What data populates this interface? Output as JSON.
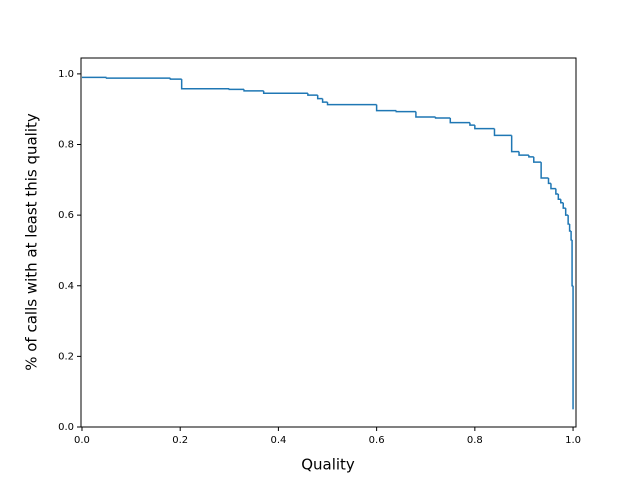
{
  "chart_data": {
    "type": "line",
    "drawstyle": "steps-post",
    "color": "#1f77b4",
    "xlabel": "Quality",
    "ylabel": "% of calls with at least this quality",
    "x": [
      0.0,
      0.05,
      0.18,
      0.203,
      0.3,
      0.33,
      0.37,
      0.46,
      0.48,
      0.49,
      0.5,
      0.6,
      0.64,
      0.68,
      0.72,
      0.75,
      0.79,
      0.8,
      0.84,
      0.875,
      0.89,
      0.91,
      0.92,
      0.935,
      0.95,
      0.955,
      0.965,
      0.97,
      0.975,
      0.98,
      0.985,
      0.99,
      0.993,
      0.996,
      0.998,
      1.0
    ],
    "values": [
      0.99,
      0.988,
      0.985,
      0.958,
      0.956,
      0.952,
      0.945,
      0.94,
      0.93,
      0.92,
      0.913,
      0.896,
      0.893,
      0.878,
      0.875,
      0.862,
      0.855,
      0.845,
      0.826,
      0.78,
      0.77,
      0.765,
      0.75,
      0.705,
      0.69,
      0.675,
      0.66,
      0.645,
      0.635,
      0.62,
      0.6,
      0.575,
      0.555,
      0.53,
      0.4,
      0.05
    ],
    "xlim": [
      -0.002,
      1.006
    ],
    "ylim": [
      0,
      1.045
    ],
    "xticks": [
      {
        "value": 0,
        "label": "0.0"
      },
      {
        "value": 0.2,
        "label": "0.2"
      },
      {
        "value": 0.4,
        "label": "0.4"
      },
      {
        "value": 0.6,
        "label": "0.6"
      },
      {
        "value": 0.8,
        "label": "0.8"
      },
      {
        "value": 1,
        "label": "1.0"
      }
    ],
    "yticks": [
      {
        "value": 0,
        "label": "0.0"
      },
      {
        "value": 0.2,
        "label": "0.2"
      },
      {
        "value": 0.4,
        "label": "0.4"
      },
      {
        "value": 0.6,
        "label": "0.6"
      },
      {
        "value": 0.8,
        "label": "0.8"
      },
      {
        "value": 1,
        "label": "1.0"
      }
    ]
  }
}
